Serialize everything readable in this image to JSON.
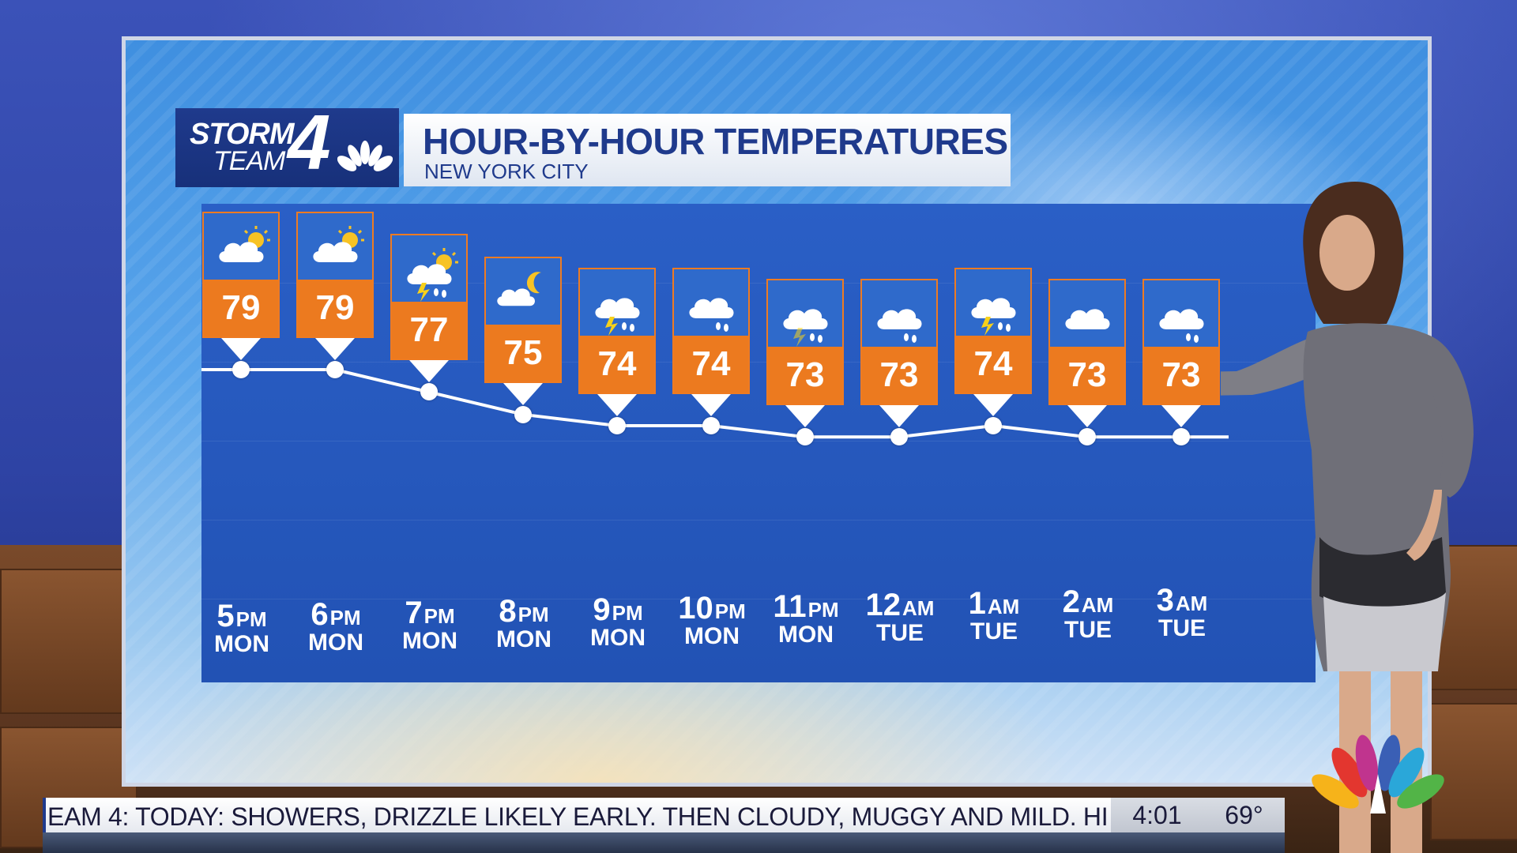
{
  "header": {
    "logo_storm": "STORM",
    "logo_team": "TEAM",
    "logo_number": "4",
    "title": "HOUR-BY-HOUR TEMPERATURES",
    "subtitle": "NEW YORK CITY"
  },
  "chart_data": {
    "type": "line",
    "x": [
      "5 PM MON",
      "6 PM MON",
      "7 PM MON",
      "8 PM MON",
      "9 PM MON",
      "10 PM MON",
      "11 PM MON",
      "12 AM TUE",
      "1 AM TUE",
      "2 AM TUE",
      "3 AM TUE"
    ],
    "values": [
      79,
      79,
      77,
      75,
      74,
      74,
      73,
      73,
      74,
      73,
      73
    ],
    "ylim": [
      70,
      82
    ]
  },
  "hours": [
    {
      "hour": "5",
      "ampm": "PM",
      "day": "MON",
      "temp": "79",
      "icon": "partly-sunny-icon"
    },
    {
      "hour": "6",
      "ampm": "PM",
      "day": "MON",
      "temp": "79",
      "icon": "partly-sunny-icon"
    },
    {
      "hour": "7",
      "ampm": "PM",
      "day": "MON",
      "temp": "77",
      "icon": "sun-thunderstorm-icon"
    },
    {
      "hour": "8",
      "ampm": "PM",
      "day": "MON",
      "temp": "75",
      "icon": "partly-cloudy-night-icon"
    },
    {
      "hour": "9",
      "ampm": "PM",
      "day": "MON",
      "temp": "74",
      "icon": "thunderstorm-icon"
    },
    {
      "hour": "10",
      "ampm": "PM",
      "day": "MON",
      "temp": "74",
      "icon": "rain-icon"
    },
    {
      "hour": "11",
      "ampm": "PM",
      "day": "MON",
      "temp": "73",
      "icon": "thunder-showers-icon"
    },
    {
      "hour": "12",
      "ampm": "AM",
      "day": "TUE",
      "temp": "73",
      "icon": "rain-icon"
    },
    {
      "hour": "1",
      "ampm": "AM",
      "day": "TUE",
      "temp": "74",
      "icon": "thunderstorm-icon"
    },
    {
      "hour": "2",
      "ampm": "AM",
      "day": "TUE",
      "temp": "73",
      "icon": "cloudy-icon"
    },
    {
      "hour": "3",
      "ampm": "AM",
      "day": "TUE",
      "temp": "73",
      "icon": "rain-icon"
    }
  ],
  "ticker": {
    "text": "EAM 4:  TODAY: SHOWERS, DRIZZLE LIKELY EARLY. THEN CLOUDY, MUGGY AND MILD. HI",
    "time": "4:01",
    "temperature": "69°"
  },
  "colors": {
    "card_orange": "#ec7a1f",
    "brand_blue": "#1f3a8c",
    "panel_blue": "#2a5fc6"
  }
}
